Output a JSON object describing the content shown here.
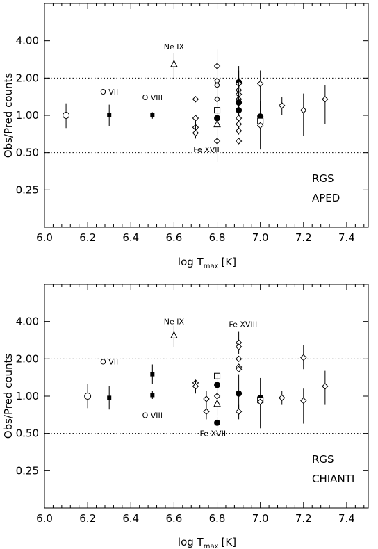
{
  "chart_data": [
    {
      "type": "scatter",
      "title": "",
      "xlabel_main": "log T",
      "xlabel_sub": "max",
      "xlabel_unit": "[K]",
      "ylabel": "Obs/Pred counts",
      "xlim": [
        6.0,
        7.5
      ],
      "ylim_log2": [
        -3.0,
        3.0
      ],
      "y_scale": "log",
      "xticks": [
        "6.0",
        "6.2",
        "6.4",
        "6.6",
        "6.8",
        "7.0",
        "7.2",
        "7.4"
      ],
      "yticks": [
        "4.00",
        "2.00",
        "1.00",
        "0.50",
        "0.25"
      ],
      "reference_lines": [
        2.0,
        0.5
      ],
      "annotation_title": "RGS",
      "annotation_sub": "APED",
      "line_labels": [
        {
          "text": "Ne IX",
          "x": 6.6,
          "y": 3.6
        },
        {
          "text": "O VII",
          "x": 6.3,
          "y": 1.55
        },
        {
          "text": "O VIII",
          "x": 6.5,
          "y": 1.4
        },
        {
          "text": "Fe XVII",
          "x": 6.75,
          "y": 0.53
        }
      ],
      "points": [
        {
          "x": 6.1,
          "y": 1.0,
          "lo": 0.79,
          "hi": 1.25,
          "m": "circle-open"
        },
        {
          "x": 6.3,
          "y": 1.0,
          "lo": 0.82,
          "hi": 1.22,
          "m": "square-filled"
        },
        {
          "x": 6.5,
          "y": 1.0,
          "lo": 0.94,
          "hi": 1.06,
          "m": "square-filled"
        },
        {
          "x": 6.6,
          "y": 2.6,
          "lo": 2.0,
          "hi": 3.2,
          "m": "triangle-open"
        },
        {
          "x": 6.7,
          "y": 1.35,
          "m": "diamond-open"
        },
        {
          "x": 6.7,
          "y": 0.95,
          "m": "diamond-open"
        },
        {
          "x": 6.7,
          "y": 0.8,
          "m": "diamond-open"
        },
        {
          "x": 6.7,
          "y": 0.72,
          "lo": 0.65,
          "hi": 0.9,
          "m": "diamond-open"
        },
        {
          "x": 6.8,
          "y": 2.5,
          "lo": 1.7,
          "hi": 3.4,
          "m": "diamond-open"
        },
        {
          "x": 6.8,
          "y": 1.9,
          "m": "diamond-open"
        },
        {
          "x": 6.8,
          "y": 1.75,
          "m": "diamond-open"
        },
        {
          "x": 6.8,
          "y": 1.35,
          "lo": 1.0,
          "hi": 1.9,
          "m": "diamond-open"
        },
        {
          "x": 6.8,
          "y": 1.1,
          "m": "square-open"
        },
        {
          "x": 6.8,
          "y": 0.95,
          "lo": 0.42,
          "hi": 1.9,
          "m": "circle-filled"
        },
        {
          "x": 6.8,
          "y": 0.85,
          "m": "triangle-open"
        },
        {
          "x": 6.8,
          "y": 0.62,
          "m": "diamond-open"
        },
        {
          "x": 6.9,
          "y": 1.85,
          "lo": 1.2,
          "hi": 2.5,
          "m": "circle-filled"
        },
        {
          "x": 6.9,
          "y": 1.8,
          "m": "diamond-open"
        },
        {
          "x": 6.9,
          "y": 1.6,
          "m": "diamond-open"
        },
        {
          "x": 6.9,
          "y": 1.48,
          "m": "diamond-open"
        },
        {
          "x": 6.9,
          "y": 1.35,
          "m": "diamond-open"
        },
        {
          "x": 6.9,
          "y": 1.27,
          "lo": 0.7,
          "hi": 2.3,
          "m": "circle-filled"
        },
        {
          "x": 6.9,
          "y": 1.1,
          "lo": 0.75,
          "hi": 1.6,
          "m": "circle-filled"
        },
        {
          "x": 6.9,
          "y": 0.95,
          "m": "diamond-open"
        },
        {
          "x": 6.9,
          "y": 0.85,
          "m": "diamond-open"
        },
        {
          "x": 6.9,
          "y": 0.75,
          "m": "diamond-open"
        },
        {
          "x": 6.9,
          "y": 0.62,
          "m": "diamond-open"
        },
        {
          "x": 7.0,
          "y": 1.8,
          "lo": 1.0,
          "hi": 2.3,
          "m": "diamond-open"
        },
        {
          "x": 7.0,
          "y": 0.98,
          "lo": 0.53,
          "hi": 1.3,
          "m": "circle-filled"
        },
        {
          "x": 7.0,
          "y": 0.93,
          "m": "cross"
        },
        {
          "x": 7.0,
          "y": 0.9,
          "m": "square-open"
        },
        {
          "x": 7.0,
          "y": 0.83,
          "m": "diamond-open"
        },
        {
          "x": 7.1,
          "y": 1.2,
          "lo": 1.0,
          "hi": 1.4,
          "m": "diamond-open"
        },
        {
          "x": 7.2,
          "y": 1.1,
          "lo": 0.68,
          "hi": 1.5,
          "m": "diamond-open"
        },
        {
          "x": 7.3,
          "y": 1.35,
          "lo": 0.85,
          "hi": 1.75,
          "m": "diamond-open"
        }
      ]
    },
    {
      "type": "scatter",
      "title": "",
      "xlabel_main": "log T",
      "xlabel_sub": "max",
      "xlabel_unit": "[K]",
      "ylabel": "Obs/Pred counts",
      "xlim": [
        6.0,
        7.5
      ],
      "ylim_log2": [
        -3.0,
        3.0
      ],
      "y_scale": "log",
      "xticks": [
        "6.0",
        "6.2",
        "6.4",
        "6.6",
        "6.8",
        "7.0",
        "7.2",
        "7.4"
      ],
      "yticks": [
        "4.00",
        "2.00",
        "1.00",
        "0.50",
        "0.25"
      ],
      "reference_lines": [
        2.0,
        0.5
      ],
      "annotation_title": "RGS",
      "annotation_sub": "CHIANTI",
      "line_labels": [
        {
          "text": "Ne IX",
          "x": 6.6,
          "y": 4.0
        },
        {
          "text": "Fe XVIII",
          "x": 6.92,
          "y": 3.8
        },
        {
          "text": "O VII",
          "x": 6.3,
          "y": 1.9
        },
        {
          "text": "O VIII",
          "x": 6.5,
          "y": 0.7
        },
        {
          "text": "Fe XVII",
          "x": 6.78,
          "y": 0.5
        }
      ],
      "points": [
        {
          "x": 6.2,
          "y": 1.0,
          "lo": 0.8,
          "hi": 1.25,
          "m": "circle-open"
        },
        {
          "x": 6.3,
          "y": 0.97,
          "lo": 0.78,
          "hi": 1.2,
          "m": "square-filled"
        },
        {
          "x": 6.5,
          "y": 1.5,
          "lo": 1.25,
          "hi": 1.8,
          "m": "square-filled"
        },
        {
          "x": 6.5,
          "y": 1.02,
          "lo": 0.95,
          "hi": 1.1,
          "m": "square-filled"
        },
        {
          "x": 6.6,
          "y": 3.1,
          "lo": 2.5,
          "hi": 3.7,
          "m": "triangle-open"
        },
        {
          "x": 6.7,
          "y": 1.28,
          "m": "diamond-open"
        },
        {
          "x": 6.7,
          "y": 1.2,
          "lo": 1.05,
          "hi": 1.35,
          "m": "diamond-open"
        },
        {
          "x": 6.75,
          "y": 0.95,
          "lo": 0.8,
          "hi": 1.1,
          "m": "diamond-open"
        },
        {
          "x": 6.75,
          "y": 0.75,
          "lo": 0.65,
          "hi": 0.88,
          "m": "diamond-open"
        },
        {
          "x": 6.8,
          "y": 1.45,
          "m": "square-open"
        },
        {
          "x": 6.8,
          "y": 1.23,
          "lo": 1.0,
          "hi": 1.5,
          "m": "circle-filled"
        },
        {
          "x": 6.8,
          "y": 1.0,
          "m": "diamond-open"
        },
        {
          "x": 6.8,
          "y": 0.87,
          "lo": 0.7,
          "hi": 1.3,
          "m": "triangle-open"
        },
        {
          "x": 6.8,
          "y": 0.61,
          "lo": 0.55,
          "hi": 0.68,
          "m": "circle-filled"
        },
        {
          "x": 6.9,
          "y": 2.7,
          "lo": 2.2,
          "hi": 3.3,
          "m": "diamond-open"
        },
        {
          "x": 6.9,
          "y": 2.5,
          "m": "diamond-open"
        },
        {
          "x": 6.9,
          "y": 2.0,
          "m": "diamond-open"
        },
        {
          "x": 6.9,
          "y": 1.72,
          "m": "diamond-open"
        },
        {
          "x": 6.9,
          "y": 1.65,
          "m": "diamond-open"
        },
        {
          "x": 6.9,
          "y": 1.05,
          "lo": 0.75,
          "hi": 1.5,
          "m": "circle-filled"
        },
        {
          "x": 6.9,
          "y": 0.75,
          "lo": 0.65,
          "hi": 0.85,
          "m": "diamond-open"
        },
        {
          "x": 7.0,
          "y": 0.97,
          "lo": 0.55,
          "hi": 1.4,
          "m": "circle-filled"
        },
        {
          "x": 7.0,
          "y": 0.93,
          "m": "square-open"
        },
        {
          "x": 7.0,
          "y": 0.9,
          "m": "diamond-open"
        },
        {
          "x": 7.1,
          "y": 0.97,
          "lo": 0.85,
          "hi": 1.1,
          "m": "diamond-open"
        },
        {
          "x": 7.2,
          "y": 2.05,
          "lo": 1.65,
          "hi": 2.6,
          "m": "diamond-open"
        },
        {
          "x": 7.2,
          "y": 0.92,
          "lo": 0.6,
          "hi": 1.15,
          "m": "diamond-open"
        },
        {
          "x": 7.3,
          "y": 1.2,
          "lo": 0.85,
          "hi": 1.6,
          "m": "diamond-open"
        }
      ]
    }
  ]
}
